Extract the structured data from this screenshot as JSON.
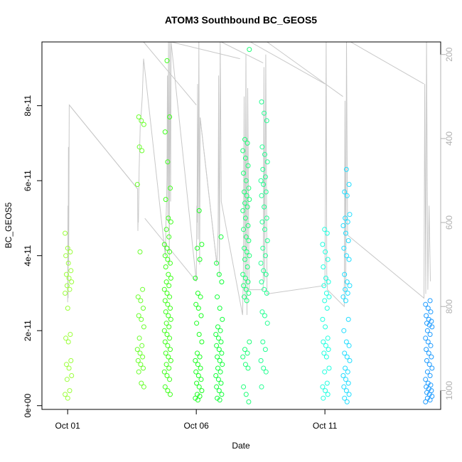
{
  "chart_data": {
    "type": "scatter",
    "title": "ATOM3 Southbound BC_GEOS5",
    "xlabel": "Date",
    "ylabel": "BC_GEOS5",
    "x_ticks": [
      {
        "day": 1,
        "label": "Oct 01"
      },
      {
        "day": 6,
        "label": "Oct 06"
      },
      {
        "day": 11,
        "label": "Oct 11"
      }
    ],
    "y_ticks": [
      {
        "value": 0,
        "label": "0e+00"
      },
      {
        "value": 2e-11,
        "label": "2e-11"
      },
      {
        "value": 4e-11,
        "label": "4e-11"
      },
      {
        "value": 6e-11,
        "label": "6e-11"
      },
      {
        "value": 8e-11,
        "label": "8e-11"
      }
    ],
    "y2_ticks": [
      200,
      400,
      600,
      800,
      1000
    ],
    "xlim": [
      "Sep 30",
      "Oct 15"
    ],
    "ylim": [
      -1e-12,
      9.7e-11
    ],
    "y2lim": [
      1045,
      170
    ],
    "flights": [
      {
        "day": 1.04,
        "color": "#9CFF3C",
        "values": [
          4.6e-11,
          4.2e-11,
          4.1e-11,
          4e-11,
          3.8e-11,
          3.6e-11,
          3.5e-11,
          3.4e-11,
          3.3e-11,
          3.2e-11,
          3.1e-11,
          3e-11,
          2.6e-11,
          1.9e-11,
          1.8e-11,
          1.7e-11,
          1.2e-11,
          1.1e-11,
          1e-11,
          8e-12,
          7e-12,
          4e-12,
          3e-12,
          2e-12
        ]
      },
      {
        "day": 3.85,
        "color": "#6BFF2E",
        "values": [
          7.7e-11,
          7.6e-11,
          7.5e-11,
          6.9e-11,
          6.8e-11,
          5.9e-11,
          4.1e-11,
          3.1e-11,
          2.9e-11,
          2.8e-11,
          2.6e-11,
          2.4e-11,
          2.3e-11,
          2.1e-11,
          1.8e-11,
          1.6e-11,
          1.5e-11,
          1.4e-11,
          1.3e-11,
          1.2e-11,
          1.1e-11,
          1e-11,
          9e-12,
          6e-12,
          5e-12
        ]
      },
      {
        "day": 4.9,
        "color": "#3FFF1C",
        "values": [
          9.2e-11,
          7.7e-11,
          7.3e-11,
          6.5e-11,
          5.8e-11,
          5.5e-11,
          5e-11,
          4.9e-11,
          4.7e-11,
          4.5e-11,
          4.3e-11,
          4.2e-11,
          4.1e-11,
          4e-11,
          3.9e-11,
          3.8e-11,
          3.7e-11,
          3.5e-11,
          3.4e-11,
          3.3e-11,
          3.2e-11,
          3.1e-11,
          3e-11,
          2.9e-11,
          2.8e-11,
          2.7e-11,
          2.6e-11,
          2.5e-11,
          2.4e-11,
          2.3e-11,
          2.2e-11,
          2.1e-11,
          2e-11,
          1.9e-11,
          1.8e-11,
          1.7e-11,
          1.6e-11,
          1.5e-11,
          1.4e-11,
          1.3e-11,
          1.2e-11,
          1.1e-11,
          1e-11,
          9e-12,
          8e-12,
          7e-12,
          5e-12,
          4e-12,
          3e-12
        ]
      },
      {
        "day": 6.1,
        "color": "#1CFF22",
        "values": [
          5.2e-11,
          4.3e-11,
          4.2e-11,
          3.9e-11,
          3.4e-11,
          3e-11,
          2.9e-11,
          2.7e-11,
          2.6e-11,
          2.4e-11,
          2.2e-11,
          1.9e-11,
          1.7e-11,
          1.4e-11,
          1.3e-11,
          1.2e-11,
          1.1e-11,
          1e-11,
          9e-12,
          8e-12,
          7e-12,
          6e-12,
          5e-12,
          4e-12,
          3e-12,
          2.5e-12,
          2e-12,
          1.5e-12
        ]
      },
      {
        "day": 6.9,
        "color": "#12FF3A",
        "values": [
          4.5e-11,
          3.8e-11,
          3.5e-11,
          3.3e-11,
          2.9e-11,
          2.6e-11,
          2.3e-11,
          2.1e-11,
          2e-11,
          1.9e-11,
          1.8e-11,
          1.7e-11,
          1.6e-11,
          1.5e-11,
          1.4e-11,
          1.3e-11,
          1.2e-11,
          1.1e-11,
          1e-11,
          9e-12,
          8e-12,
          7e-12,
          6e-12,
          5e-12,
          4e-12,
          3e-12,
          2e-12,
          1.5e-12
        ]
      },
      {
        "day": 7.95,
        "color": "#1EFF78",
        "values": [
          9.5e-11,
          7.1e-11,
          7e-11,
          6.8e-11,
          6.6e-11,
          6.4e-11,
          6.2e-11,
          6e-11,
          5.8e-11,
          5.7e-11,
          5.6e-11,
          5.5e-11,
          5.4e-11,
          5.3e-11,
          5.2e-11,
          5e-11,
          4.8e-11,
          4.7e-11,
          4.5e-11,
          4.4e-11,
          4.2e-11,
          4.1e-11,
          4e-11,
          3.9e-11,
          3.7e-11,
          3.5e-11,
          3.4e-11,
          3.3e-11,
          3.2e-11,
          3.1e-11,
          3e-11,
          2.9e-11,
          2.8e-11,
          1.7e-11,
          1.5e-11,
          1.4e-11,
          1.3e-11,
          1.1e-11,
          1e-11,
          5e-12,
          3e-12,
          1e-12
        ]
      },
      {
        "day": 8.65,
        "color": "#24FF92",
        "values": [
          8.1e-11,
          7.8e-11,
          7.6e-11,
          6.9e-11,
          6.7e-11,
          6.5e-11,
          6.3e-11,
          6.1e-11,
          6e-11,
          5.9e-11,
          5.7e-11,
          5.6e-11,
          5.3e-11,
          5e-11,
          4.9e-11,
          4.7e-11,
          4.4e-11,
          4.2e-11,
          4e-11,
          3.8e-11,
          3.6e-11,
          3.5e-11,
          3.3e-11,
          3.1e-11,
          3e-11,
          2.5e-11,
          2.4e-11,
          2.2e-11,
          1.7e-11,
          1.5e-11,
          1.2e-11,
          1e-11,
          9e-12,
          5e-12
        ]
      },
      {
        "day": 11.05,
        "color": "#22FFE0",
        "values": [
          4.7e-11,
          4.6e-11,
          4.3e-11,
          4.1e-11,
          3.9e-11,
          3.7e-11,
          3.4e-11,
          3.3e-11,
          3.2e-11,
          3e-11,
          2.9e-11,
          2.8e-11,
          2.6e-11,
          2.3e-11,
          2.1e-11,
          1.8e-11,
          1.7e-11,
          1.6e-11,
          1.5e-11,
          1.4e-11,
          1.3e-11,
          1e-11,
          9e-12,
          6e-12,
          5e-12,
          4e-12,
          3e-12,
          2e-12
        ]
      },
      {
        "day": 11.85,
        "color": "#22DDFF",
        "values": [
          6.3e-11,
          5.9e-11,
          5.7e-11,
          5.6e-11,
          5.1e-11,
          5e-11,
          4.9e-11,
          4.8e-11,
          4.6e-11,
          4.4e-11,
          4.2e-11,
          4e-11,
          3.9e-11,
          3.5e-11,
          3.3e-11,
          3.2e-11,
          3.1e-11,
          3e-11,
          2.9e-11,
          2.8e-11,
          2.3e-11,
          2e-11,
          1.7e-11,
          1.6e-11,
          1.4e-11,
          1.3e-11,
          1.2e-11,
          1e-11,
          9e-12,
          8e-12,
          7e-12,
          6e-12,
          5e-12,
          4e-12,
          3e-12,
          2e-12,
          1e-12
        ]
      },
      {
        "day": 15.05,
        "color": "#1E9BFF",
        "values": [
          2.8e-11,
          2.7e-11,
          2.6e-11,
          2.5e-11,
          2.4e-11,
          2.3e-11,
          2.25e-11,
          2.2e-11,
          2.15e-11,
          2.1e-11,
          2e-11,
          1.9e-11,
          1.8e-11,
          1.7e-11,
          1.6e-11,
          1.5e-11,
          1.4e-11,
          1.3e-11,
          1.2e-11,
          1.1e-11,
          1e-11,
          9e-12,
          8e-12,
          7e-12,
          6e-12,
          5.5e-12,
          5e-12,
          4.5e-12,
          4e-12,
          3.5e-12,
          3e-12,
          2.5e-12,
          2e-12,
          1.5e-12,
          1e-12
        ]
      }
    ],
    "pressure_track": [
      [
        1.0,
        790
      ],
      [
        1.01,
        560
      ],
      [
        1.02,
        780
      ],
      [
        1.03,
        420
      ],
      [
        1.04,
        700
      ],
      [
        1.06,
        320
      ],
      [
        3.72,
        520
      ],
      [
        3.73,
        620
      ],
      [
        3.74,
        580
      ],
      [
        3.75,
        600
      ],
      [
        3.78,
        470
      ],
      [
        3.82,
        370
      ],
      [
        3.86,
        340
      ],
      [
        3.9,
        300
      ],
      [
        3.95,
        210
      ],
      [
        4.8,
        680
      ],
      [
        4.82,
        600
      ],
      [
        4.84,
        560
      ],
      [
        4.86,
        500
      ],
      [
        4.88,
        250
      ],
      [
        4.9,
        600
      ],
      [
        4.92,
        170
      ],
      [
        4.95,
        700
      ],
      [
        4.97,
        170
      ],
      [
        5.0,
        550
      ],
      [
        5.02,
        170
      ],
      [
        6.0,
        740
      ],
      [
        6.02,
        560
      ],
      [
        6.03,
        600
      ],
      [
        6.05,
        270
      ],
      [
        6.07,
        640
      ],
      [
        6.1,
        170
      ],
      [
        6.13,
        700
      ],
      [
        6.15,
        350
      ],
      [
        6.8,
        700
      ],
      [
        6.85,
        620
      ],
      [
        6.87,
        250
      ],
      [
        6.9,
        730
      ],
      [
        6.93,
        170
      ],
      [
        6.97,
        550
      ],
      [
        7.8,
        820
      ],
      [
        7.83,
        720
      ],
      [
        7.86,
        300
      ],
      [
        7.9,
        780
      ],
      [
        7.93,
        200
      ],
      [
        7.97,
        820
      ],
      [
        8.0,
        280
      ],
      [
        8.05,
        760
      ],
      [
        8.6,
        760
      ],
      [
        8.63,
        230
      ],
      [
        8.66,
        740
      ],
      [
        8.7,
        200
      ],
      [
        8.75,
        770
      ],
      [
        11.0,
        750
      ],
      [
        11.02,
        540
      ],
      [
        11.05,
        170
      ],
      [
        11.07,
        720
      ],
      [
        11.1,
        760
      ],
      [
        11.75,
        800
      ],
      [
        11.78,
        310
      ],
      [
        11.81,
        770
      ],
      [
        11.84,
        170
      ],
      [
        11.88,
        630
      ],
      [
        14.85,
        780
      ],
      [
        14.88,
        270
      ],
      [
        14.92,
        770
      ],
      [
        14.95,
        170
      ],
      [
        15.0,
        760
      ],
      [
        15.05,
        560
      ],
      [
        15.1,
        740
      ]
    ],
    "ferry_legs": [
      [
        [
          1.06,
          320
        ],
        [
          3.72,
          520
        ]
      ],
      [
        [
          3.95,
          170
        ],
        [
          6.0,
          320
        ]
      ],
      [
        [
          4.0,
          590
        ],
        [
          6.0,
          740
        ]
      ],
      [
        [
          5.02,
          170
        ],
        [
          7.7,
          210
        ]
      ],
      [
        [
          6.15,
          350
        ],
        [
          6.8,
          700
        ]
      ],
      [
        [
          6.97,
          170
        ],
        [
          8.6,
          220
        ]
      ],
      [
        [
          8.1,
          170
        ],
        [
          11.0,
          270
        ]
      ],
      [
        [
          8.75,
          170
        ],
        [
          11.7,
          300
        ]
      ],
      [
        [
          12.0,
          170
        ],
        [
          14.85,
          270
        ]
      ]
    ],
    "grid": false,
    "legend": "none"
  }
}
